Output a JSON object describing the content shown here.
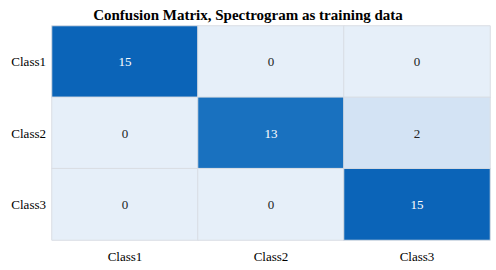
{
  "chart_data": {
    "type": "heatmap",
    "title": "Confusion Matrix, Spectrogram as training data",
    "x_categories": [
      "Class1",
      "Class2",
      "Class3"
    ],
    "y_categories": [
      "Class1",
      "Class2",
      "Class3"
    ],
    "cells": [
      [
        15,
        0,
        0
      ],
      [
        0,
        13,
        2
      ],
      [
        0,
        0,
        15
      ]
    ],
    "data_labels": true
  }
}
